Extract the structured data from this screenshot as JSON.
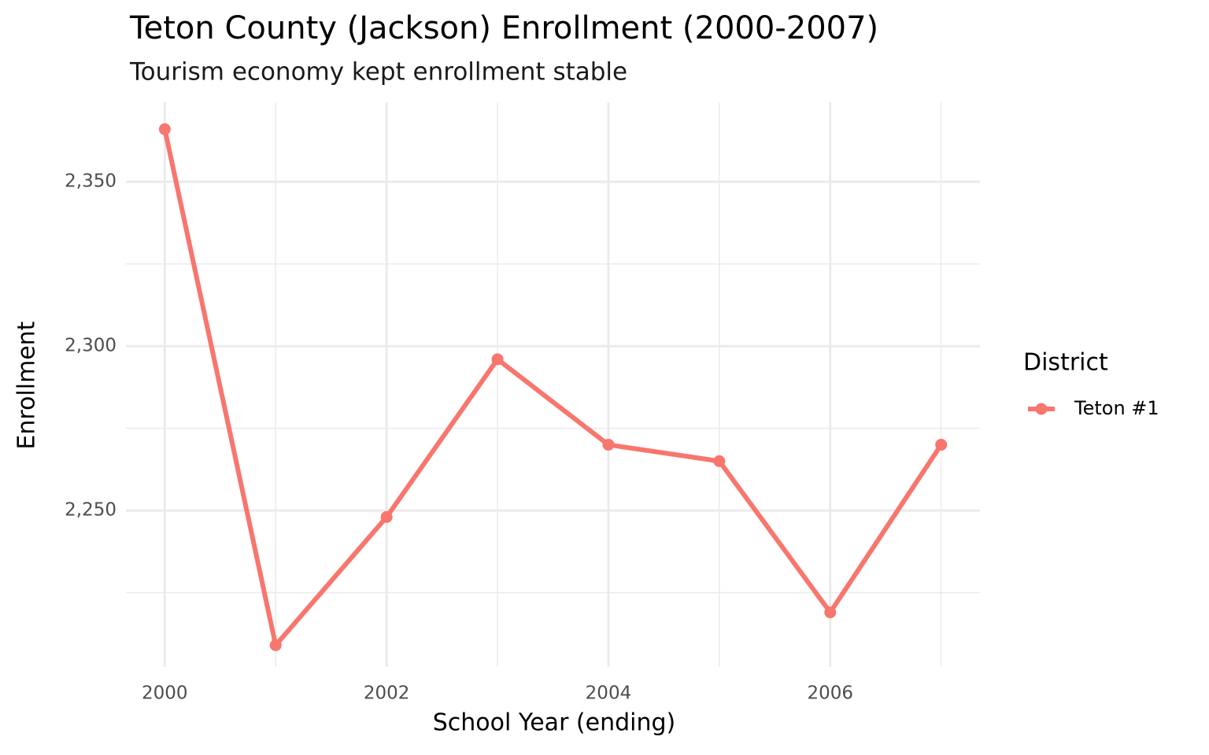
{
  "chart_data": {
    "type": "line",
    "title": "Teton County (Jackson) Enrollment (2000-2007)",
    "subtitle": "Tourism economy kept enrollment stable",
    "x_label": "School Year (ending)",
    "y_label": "Enrollment",
    "x": [
      2000,
      2001,
      2002,
      2003,
      2004,
      2005,
      2006,
      2007
    ],
    "series": [
      {
        "name": "Teton #1",
        "color": "#F8766D",
        "values": [
          2366,
          2209,
          2248,
          2296,
          2270,
          2265,
          2219,
          2270
        ]
      }
    ],
    "legend_title": "District",
    "legend_position": "right",
    "xlim": [
      1999.65,
      2007.35
    ],
    "xticks": [
      2000,
      2002,
      2004,
      2006
    ],
    "x_minor_ticks": [
      2001,
      2003,
      2005,
      2007
    ],
    "ylim": [
      2202.4,
      2374.2
    ],
    "yticks": [
      {
        "value": 2250,
        "label": "2,250"
      },
      {
        "value": 2300,
        "label": "2,300"
      },
      {
        "value": 2350,
        "label": "2,350"
      }
    ],
    "y_minor_ticks": [
      2225,
      2275,
      2325
    ],
    "grid": true
  }
}
